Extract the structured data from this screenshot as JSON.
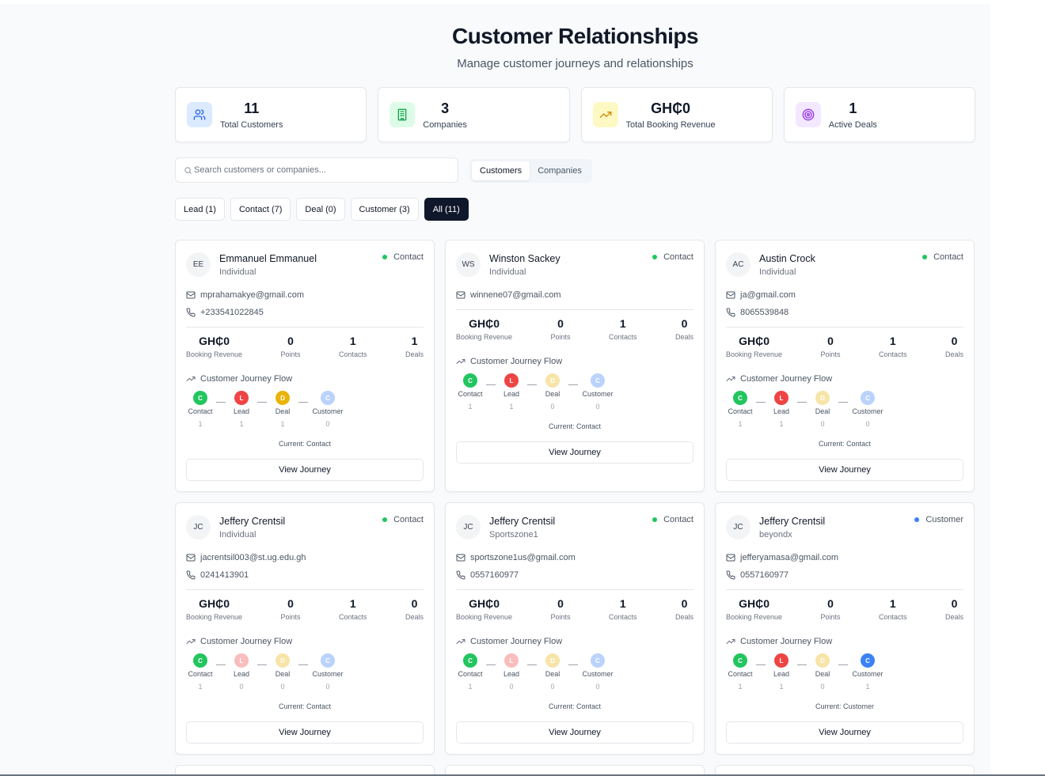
{
  "header": {
    "title": "Customer Relationships",
    "subtitle": "Manage customer journeys and relationships"
  },
  "stats": [
    {
      "value": "11",
      "label": "Total Customers",
      "icon": "users-icon",
      "bg": "#dbeafe",
      "fg": "#2563eb"
    },
    {
      "value": "3",
      "label": "Companies",
      "icon": "building-icon",
      "bg": "#dcfce7",
      "fg": "#16a34a"
    },
    {
      "value": "GH₵0",
      "label": "Total Booking Revenue",
      "icon": "trending-up-icon",
      "bg": "#fef9c3",
      "fg": "#ca8a04"
    },
    {
      "value": "1",
      "label": "Active Deals",
      "icon": "target-icon",
      "bg": "#f3e8ff",
      "fg": "#9333ea"
    }
  ],
  "search": {
    "placeholder": "Search customers or companies..."
  },
  "view_toggle": {
    "customers": "Customers",
    "companies": "Companies",
    "active": "customers"
  },
  "filters": [
    {
      "label": "Lead (1)",
      "active": false
    },
    {
      "label": "Contact (7)",
      "active": false
    },
    {
      "label": "Deal (0)",
      "active": false
    },
    {
      "label": "Customer (3)",
      "active": false
    },
    {
      "label": "All (11)",
      "active": true
    }
  ],
  "card_labels": {
    "revenue": "Booking Revenue",
    "points": "Points",
    "contacts": "Contacts",
    "deals": "Deals",
    "flow_title": "Customer Journey Flow",
    "view_journey": "View Journey"
  },
  "colors": {
    "contact_status": "#22c55e",
    "customer_status": "#3b82f6",
    "stage_contact": "#22c55e",
    "stage_lead": "#ef4444",
    "stage_deal": "#eab308",
    "stage_customer": "#3b82f6"
  },
  "customers": [
    {
      "initials": "EE",
      "name": "Emmanuel Emmanuel",
      "type": "Individual",
      "status": "Contact",
      "email": "mprahamakye@gmail.com",
      "phone": "+233541022845",
      "revenue": "GH₵0",
      "points": "0",
      "contacts": "1",
      "deals": "1",
      "stages": [
        {
          "letter": "C",
          "label": "Contact",
          "count": "1",
          "active": true
        },
        {
          "letter": "L",
          "label": "Lead",
          "count": "1",
          "active": true
        },
        {
          "letter": "D",
          "label": "Deal",
          "count": "1",
          "active": true
        },
        {
          "letter": "C",
          "label": "Customer",
          "count": "0",
          "active": false
        }
      ],
      "current": "Current: Contact"
    },
    {
      "initials": "WS",
      "name": "Winston Sackey",
      "type": "Individual",
      "status": "Contact",
      "email": "winnene07@gmail.com",
      "phone": "",
      "revenue": "GH₵0",
      "points": "0",
      "contacts": "1",
      "deals": "0",
      "stages": [
        {
          "letter": "C",
          "label": "Contact",
          "count": "1",
          "active": true
        },
        {
          "letter": "L",
          "label": "Lead",
          "count": "1",
          "active": true
        },
        {
          "letter": "D",
          "label": "Deal",
          "count": "0",
          "active": false
        },
        {
          "letter": "C",
          "label": "Customer",
          "count": "0",
          "active": false
        }
      ],
      "current": "Current: Contact"
    },
    {
      "initials": "AC",
      "name": "Austin Crock",
      "type": "Individual",
      "status": "Contact",
      "email": "ja@gmail.com",
      "phone": "8065539848",
      "revenue": "GH₵0",
      "points": "0",
      "contacts": "1",
      "deals": "0",
      "stages": [
        {
          "letter": "C",
          "label": "Contact",
          "count": "1",
          "active": true
        },
        {
          "letter": "L",
          "label": "Lead",
          "count": "1",
          "active": true
        },
        {
          "letter": "D",
          "label": "Deal",
          "count": "0",
          "active": false
        },
        {
          "letter": "C",
          "label": "Customer",
          "count": "0",
          "active": false
        }
      ],
      "current": "Current: Contact"
    },
    {
      "initials": "JC",
      "name": "Jeffery Crentsil",
      "type": "Individual",
      "status": "Contact",
      "email": "jacrentsil003@st.ug.edu.gh",
      "phone": "0241413901",
      "revenue": "GH₵0",
      "points": "0",
      "contacts": "1",
      "deals": "0",
      "stages": [
        {
          "letter": "C",
          "label": "Contact",
          "count": "1",
          "active": true
        },
        {
          "letter": "L",
          "label": "Lead",
          "count": "0",
          "active": false
        },
        {
          "letter": "D",
          "label": "Deal",
          "count": "0",
          "active": false
        },
        {
          "letter": "C",
          "label": "Customer",
          "count": "0",
          "active": false
        }
      ],
      "current": "Current: Contact"
    },
    {
      "initials": "JC",
      "name": "Jeffery Crentsil",
      "type": "Sportszone1",
      "status": "Contact",
      "email": "sportszone1us@gmail.com",
      "phone": "0557160977",
      "revenue": "GH₵0",
      "points": "0",
      "contacts": "1",
      "deals": "0",
      "stages": [
        {
          "letter": "C",
          "label": "Contact",
          "count": "1",
          "active": true
        },
        {
          "letter": "L",
          "label": "Lead",
          "count": "0",
          "active": false
        },
        {
          "letter": "D",
          "label": "Deal",
          "count": "0",
          "active": false
        },
        {
          "letter": "C",
          "label": "Customer",
          "count": "0",
          "active": false
        }
      ],
      "current": "Current: Contact"
    },
    {
      "initials": "JC",
      "name": "Jeffery Crentsil",
      "type": "beyondx",
      "status": "Customer",
      "email": "jefferyamasa@gmail.com",
      "phone": "0557160977",
      "revenue": "GH₵0",
      "points": "0",
      "contacts": "1",
      "deals": "0",
      "stages": [
        {
          "letter": "C",
          "label": "Contact",
          "count": "1",
          "active": true
        },
        {
          "letter": "L",
          "label": "Lead",
          "count": "1",
          "active": true
        },
        {
          "letter": "D",
          "label": "Deal",
          "count": "0",
          "active": false
        },
        {
          "letter": "C",
          "label": "Customer",
          "count": "1",
          "active": true
        }
      ],
      "current": "Current: Customer"
    }
  ]
}
